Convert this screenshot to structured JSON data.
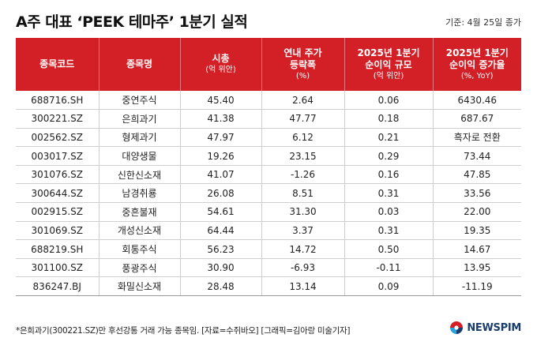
{
  "title": "A주 대표 ‘PEEK 테마주’ 1분기 실적",
  "date_note": "기준: 4월 25일 종가",
  "columns": [
    {
      "label": "종목코드",
      "sub": ""
    },
    {
      "label": "종목명",
      "sub": ""
    },
    {
      "label": "시총",
      "sub": "(억 위안)"
    },
    {
      "label": "연내 주가\n등락폭",
      "sub": "(%)"
    },
    {
      "label": "2025년 1분기\n순이익 규모",
      "sub": "(억 위안)"
    },
    {
      "label": "2025년 1분기\n순이익 증가율",
      "sub": "(%, YoY)"
    }
  ],
  "rows": [
    [
      "688716.SH",
      "중연주식",
      "45.40",
      "2.64",
      "0.06",
      "6430.46"
    ],
    [
      "300221.SZ",
      "은희과기",
      "41.38",
      "47.77",
      "0.18",
      "687.67"
    ],
    [
      "002562.SZ",
      "형제과기",
      "47.97",
      "6.12",
      "0.21",
      "흑자로 전환"
    ],
    [
      "003017.SZ",
      "대양생물",
      "19.26",
      "23.15",
      "0.29",
      "73.44"
    ],
    [
      "301076.SZ",
      "신한신소재",
      "41.07",
      "-1.26",
      "0.16",
      "47.85"
    ],
    [
      "300644.SZ",
      "남경취룡",
      "26.08",
      "8.51",
      "0.31",
      "33.56"
    ],
    [
      "002915.SZ",
      "중흔불재",
      "54.61",
      "31.30",
      "0.03",
      "22.00"
    ],
    [
      "301069.SZ",
      "개성신소재",
      "64.44",
      "3.37",
      "0.31",
      "19.35"
    ],
    [
      "688219.SH",
      "회통주식",
      "56.23",
      "14.72",
      "0.50",
      "14.67"
    ],
    [
      "301100.SZ",
      "풍광주식",
      "30.90",
      "-6.93",
      "-0.11",
      "13.95"
    ],
    [
      "836247.BJ",
      "화밀신소재",
      "28.48",
      "13.14",
      "0.09",
      "-11.19"
    ]
  ],
  "footnote": "*은희과기(300221.SZ)만 후선강통 거래 가능 종목임. [자료=수쥐바오] [그래픽=김아랑 미술기자]",
  "logo": {
    "text": "NEWSPIM",
    "icon": "newspim-logo-icon",
    "colors": [
      "#d32027",
      "#1a3d6e",
      "#27a3dc"
    ]
  },
  "colors": {
    "header_bg": "#d32027",
    "header_text": "#ffffff"
  }
}
